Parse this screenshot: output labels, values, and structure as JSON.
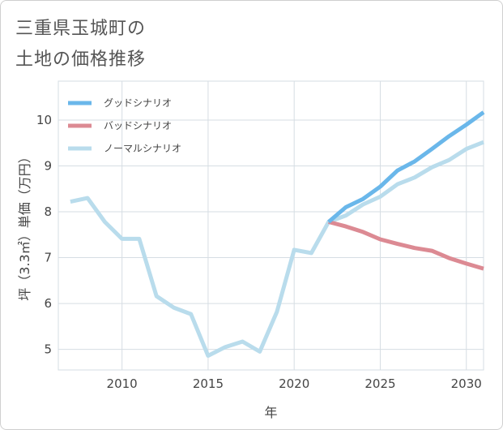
{
  "title": {
    "line1": "三重県玉城町の",
    "line2": "土地の価格推移"
  },
  "chart_data": {
    "type": "line",
    "xlabel": "年",
    "ylabel": "坪（3.3㎡）単価（万円）",
    "xlim": [
      2006.3,
      2031
    ],
    "ylim": [
      4.55,
      10.85
    ],
    "xticks": [
      2010,
      2015,
      2020,
      2025,
      2030
    ],
    "xtick_labels": [
      "2010",
      "2015",
      "2020",
      "2025",
      "2030"
    ],
    "yticks": [
      5,
      6,
      7,
      8,
      9,
      10
    ],
    "ytick_labels": [
      "5",
      "6",
      "7",
      "8",
      "9",
      "10"
    ],
    "grid": true,
    "legend_position": "top-left",
    "series": [
      {
        "name": "グッドシナリオ",
        "color": "#6ab7ea",
        "x": [
          2022,
          2023,
          2024,
          2025,
          2026,
          2027,
          2028,
          2029,
          2030,
          2031
        ],
        "values": [
          7.78,
          8.1,
          8.28,
          8.55,
          8.9,
          9.1,
          9.37,
          9.65,
          9.9,
          10.17
        ]
      },
      {
        "name": "バッドシナリオ",
        "color": "#dc8a93",
        "x": [
          2022,
          2023,
          2024,
          2025,
          2026,
          2027,
          2028,
          2029,
          2030,
          2031
        ],
        "values": [
          7.78,
          7.68,
          7.56,
          7.4,
          7.3,
          7.21,
          7.15,
          6.99,
          6.87,
          6.76
        ]
      },
      {
        "name": "ノーマルシナリオ",
        "color": "#b9dcec",
        "x": [
          2007,
          2008,
          2009,
          2010,
          2011,
          2012,
          2013,
          2014,
          2015,
          2016,
          2017,
          2018,
          2019,
          2020,
          2021,
          2022,
          2023,
          2024,
          2025,
          2026,
          2027,
          2028,
          2029,
          2030,
          2031
        ],
        "values": [
          8.22,
          8.3,
          7.78,
          7.41,
          7.41,
          6.16,
          5.91,
          5.77,
          4.86,
          5.05,
          5.17,
          4.95,
          5.82,
          7.17,
          7.1,
          7.78,
          7.92,
          8.16,
          8.33,
          8.6,
          8.75,
          8.97,
          9.13,
          9.37,
          9.52
        ]
      }
    ]
  }
}
